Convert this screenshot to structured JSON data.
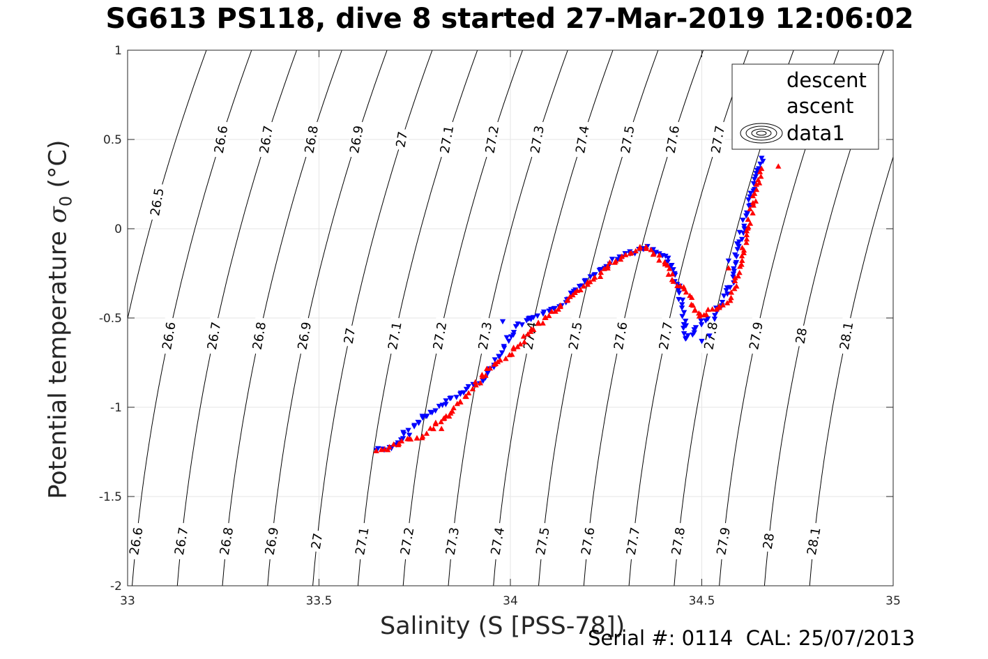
{
  "chart_data": {
    "type": "scatter",
    "title": "SG613 PS118, dive 8 started 27-Mar-2019 12:06:02",
    "xlabel": "Salinity (S [PSS-78])",
    "ylabel_main": "Potential temperature",
    "ylabel_sym": "σ",
    "ylabel_sub": "0",
    "ylabel_unit": "(°C)",
    "footer": "Serial #: 0114  CAL: 25/07/2013",
    "xlim": [
      33,
      35
    ],
    "ylim": [
      -2,
      1
    ],
    "xticks": [
      "33",
      "33.5",
      "34",
      "34.5",
      "35"
    ],
    "yticks": [
      "-2",
      "-1.5",
      "-1",
      "-0.5",
      "0",
      "0.5",
      "1"
    ],
    "grid": true,
    "legend_position": "top-right",
    "legend": [
      "descent",
      "ascent",
      "data1"
    ],
    "colors": {
      "descent": "#0000ff",
      "ascent": "#ff0000",
      "contour": "#000000",
      "grid": "#e6e6e6"
    },
    "contours": {
      "levels": [
        26.5,
        26.6,
        26.7,
        26.8,
        26.9,
        27.0,
        27.1,
        27.2,
        27.3,
        27.4,
        27.5,
        27.6,
        27.7,
        27.8,
        27.9,
        28.0,
        28.1
      ],
      "labels": [
        "26.5",
        "26.6",
        "26.7",
        "26.8",
        "26.9",
        "27",
        "27.1",
        "27.2",
        "27.3",
        "27.4",
        "27.5",
        "27.6",
        "27.7",
        "27.8",
        "27.9",
        "28",
        "28.1"
      ],
      "label_rows": [
        {
          "t": 0.5,
          "labels": [
            "26.6",
            "26.7",
            "26.8",
            "26.9",
            "27",
            "27.1",
            "27.2",
            "27.3",
            "27.4",
            "27.5",
            "27.6",
            "27.7"
          ]
        },
        {
          "t": -0.6,
          "labels": [
            "26.6",
            "26.7",
            "26.8",
            "26.9",
            "27",
            "27.1",
            "27.2",
            "27.3",
            "27.4",
            "27.5",
            "27.6",
            "27.7",
            "27.8",
            "27.9",
            "28",
            "28.1"
          ]
        },
        {
          "t": -1.75,
          "labels": [
            "26.6",
            "26.7",
            "26.8",
            "26.9",
            "27",
            "27.1",
            "27.2",
            "27.3",
            "27.4",
            "27.5",
            "27.6",
            "27.7",
            "27.8",
            "27.9",
            "28",
            "28.1"
          ]
        },
        {
          "t": 0.15,
          "labels": [
            "26.5"
          ]
        }
      ]
    },
    "series": [
      {
        "name": "descent",
        "marker": "triangle-down",
        "path": [
          [
            33.65,
            -1.24
          ],
          [
            33.7,
            -1.22
          ],
          [
            33.75,
            -1.1
          ],
          [
            33.8,
            -1.02
          ],
          [
            33.85,
            -0.95
          ],
          [
            33.9,
            -0.88
          ],
          [
            33.94,
            -0.82
          ],
          [
            33.97,
            -0.72
          ],
          [
            34.0,
            -0.6
          ],
          [
            34.03,
            -0.53
          ],
          [
            34.1,
            -0.47
          ],
          [
            34.15,
            -0.4
          ],
          [
            34.2,
            -0.28
          ],
          [
            34.25,
            -0.2
          ],
          [
            34.3,
            -0.14
          ],
          [
            34.36,
            -0.11
          ],
          [
            34.4,
            -0.14
          ],
          [
            34.43,
            -0.25
          ],
          [
            34.45,
            -0.45
          ],
          [
            34.46,
            -0.62
          ],
          [
            34.5,
            -0.52
          ],
          [
            34.53,
            -0.5
          ],
          [
            34.55,
            -0.42
          ],
          [
            34.58,
            -0.3
          ],
          [
            34.6,
            -0.05
          ],
          [
            34.62,
            0.1
          ],
          [
            34.64,
            0.25
          ],
          [
            34.66,
            0.42
          ]
        ],
        "extra": [
          [
            33.98,
            -0.52
          ],
          [
            34.05,
            -0.5
          ],
          [
            33.77,
            -1.05
          ],
          [
            33.72,
            -1.14
          ],
          [
            34.52,
            -0.6
          ],
          [
            34.5,
            -0.63
          ],
          [
            34.57,
            -0.18
          ]
        ]
      },
      {
        "name": "ascent",
        "marker": "triangle-up",
        "path": [
          [
            33.65,
            -1.25
          ],
          [
            33.68,
            -1.23
          ],
          [
            33.72,
            -1.19
          ],
          [
            33.77,
            -1.17
          ],
          [
            33.8,
            -1.1
          ],
          [
            33.85,
            -1.02
          ],
          [
            33.9,
            -0.9
          ],
          [
            33.95,
            -0.78
          ],
          [
            34.0,
            -0.7
          ],
          [
            34.05,
            -0.58
          ],
          [
            34.1,
            -0.48
          ],
          [
            34.15,
            -0.4
          ],
          [
            34.2,
            -0.32
          ],
          [
            34.25,
            -0.22
          ],
          [
            34.3,
            -0.14
          ],
          [
            34.35,
            -0.1
          ],
          [
            34.4,
            -0.18
          ],
          [
            34.43,
            -0.3
          ],
          [
            34.45,
            -0.33
          ],
          [
            34.47,
            -0.38
          ],
          [
            34.49,
            -0.5
          ],
          [
            34.52,
            -0.46
          ],
          [
            34.55,
            -0.43
          ],
          [
            34.58,
            -0.38
          ],
          [
            34.6,
            -0.2
          ],
          [
            34.62,
            0.0
          ],
          [
            34.64,
            0.2
          ],
          [
            34.66,
            0.35
          ]
        ],
        "extra": [
          [
            34.7,
            0.35
          ],
          [
            33.84,
            -1.05
          ],
          [
            33.82,
            -1.12
          ],
          [
            34.57,
            -0.22
          ]
        ]
      }
    ]
  }
}
